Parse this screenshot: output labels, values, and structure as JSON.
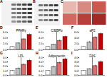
{
  "panel_labels": [
    "A",
    "B",
    "C",
    "D",
    "E",
    "F",
    "G",
    "H",
    "I"
  ],
  "chart_data": [
    {
      "type": "bar",
      "title": "PPARγ",
      "categories": [
        null,
        null,
        null,
        null
      ],
      "values": [
        1,
        2.2,
        3.6,
        5.1
      ],
      "errors": [
        0.1,
        0.2,
        0.3,
        0.4
      ],
      "colors": [
        "#ffffff",
        "#bfbfbf",
        "#e07070",
        "#c00000"
      ],
      "ylim": [
        0,
        6
      ],
      "yticks": [
        0,
        2,
        4,
        6
      ],
      "tick_labels": "y"
    },
    {
      "type": "bar",
      "title": "C/EBPα",
      "categories": [
        null,
        null,
        null,
        null
      ],
      "values": [
        1,
        1.8,
        3.1,
        4.4
      ],
      "errors": [
        0.1,
        0.2,
        0.3,
        0.3
      ],
      "colors": [
        "#ffffff",
        "#bfbfbf",
        "#e07070",
        "#c00000"
      ],
      "ylim": [
        0,
        6
      ],
      "yticks": [
        0,
        2,
        4,
        6
      ],
      "tick_labels": "y"
    },
    {
      "type": "bar",
      "title": "aP2",
      "categories": [
        null,
        null,
        null,
        null
      ],
      "values": [
        1,
        2.6,
        4.2,
        5.4
      ],
      "errors": [
        0.1,
        0.3,
        0.3,
        0.4
      ],
      "colors": [
        "#ffffff",
        "#bfbfbf",
        "#e07070",
        "#c00000"
      ],
      "ylim": [
        0,
        6
      ],
      "yticks": [
        0,
        2,
        4,
        6
      ],
      "tick_labels": "y"
    },
    {
      "type": "bar",
      "title": "LPL",
      "categories": [
        null,
        null,
        null,
        null
      ],
      "values": [
        1,
        1.5,
        2.4,
        3.3
      ],
      "errors": [
        0.1,
        0.2,
        0.2,
        0.3
      ],
      "colors": [
        "#ffffff",
        "#bfbfbf",
        "#e07070",
        "#c00000"
      ],
      "ylim": [
        0,
        4
      ],
      "yticks": [
        0,
        1,
        2,
        3,
        4
      ],
      "tick_labels": "y"
    },
    {
      "type": "bar",
      "title": "Adiponectin",
      "categories": [
        null,
        null,
        null,
        null
      ],
      "values": [
        1,
        1.9,
        2.8,
        3.6
      ],
      "errors": [
        0.1,
        0.2,
        0.2,
        0.3
      ],
      "colors": [
        "#ffffff",
        "#bfbfbf",
        "#e07070",
        "#c00000"
      ],
      "ylim": [
        0,
        4
      ],
      "yticks": [
        0,
        1,
        2,
        3,
        4
      ],
      "tick_labels": "y"
    },
    {
      "type": "bar",
      "title": "FAS",
      "categories": [
        null,
        null,
        null,
        null
      ],
      "values": [
        1,
        1.4,
        2.1,
        3.0
      ],
      "errors": [
        0.1,
        0.1,
        0.2,
        0.3
      ],
      "colors": [
        "#ffffff",
        "#bfbfbf",
        "#e07070",
        "#c00000"
      ],
      "ylim": [
        0,
        4
      ],
      "yticks": [
        0,
        1,
        2,
        3,
        4
      ],
      "tick_labels": "y"
    }
  ]
}
